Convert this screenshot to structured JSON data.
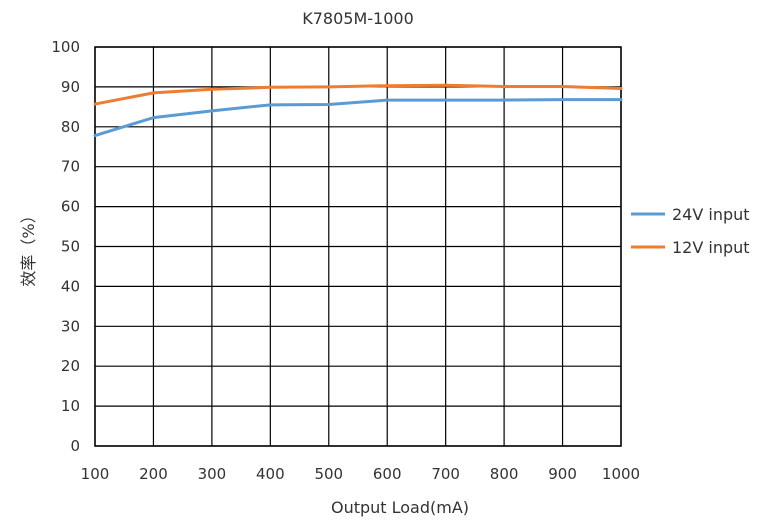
{
  "chart_data": {
    "type": "line",
    "title": "K7805M-1000",
    "xlabel": "Output Load(mA)",
    "ylabel": "效率（%）",
    "x": [
      100,
      200,
      300,
      400,
      500,
      600,
      700,
      800,
      900,
      1000
    ],
    "xlim": [
      100,
      1000
    ],
    "ylim": [
      0,
      100
    ],
    "xticks": [
      100,
      200,
      300,
      400,
      500,
      600,
      700,
      800,
      900,
      1000
    ],
    "yticks": [
      0,
      10,
      20,
      30,
      40,
      50,
      60,
      70,
      80,
      90,
      100
    ],
    "grid": true,
    "legend_position": "right",
    "series": [
      {
        "name": "24V input",
        "color": "#5B9BD5",
        "values": [
          77.8,
          82.3,
          84.0,
          85.5,
          85.6,
          86.7,
          86.7,
          86.7,
          86.8,
          86.8
        ]
      },
      {
        "name": "12V input",
        "color": "#ED7D31",
        "values": [
          85.7,
          88.5,
          89.4,
          89.9,
          90.0,
          90.3,
          90.4,
          90.1,
          90.1,
          89.6
        ]
      }
    ]
  }
}
